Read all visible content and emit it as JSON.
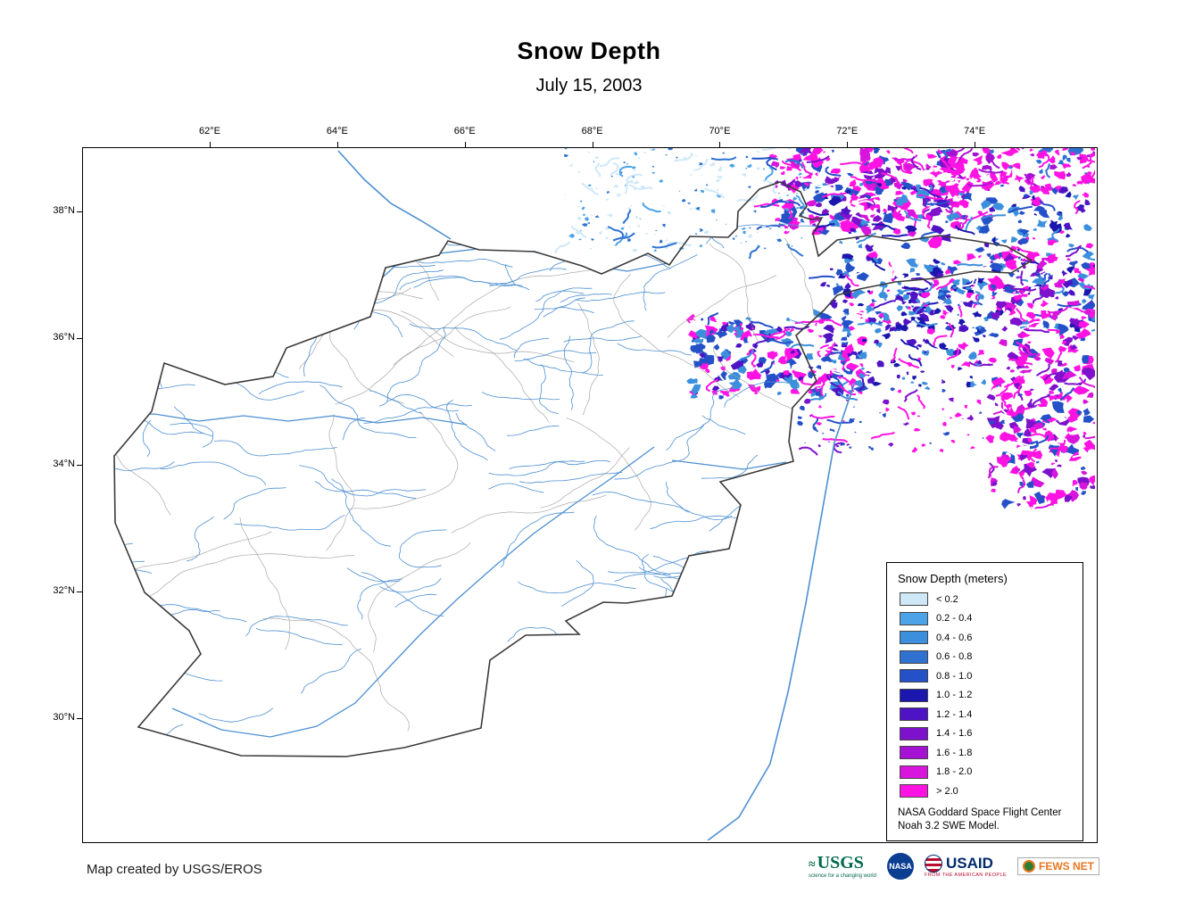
{
  "title": "Snow Depth",
  "subtitle": "July 15, 2003",
  "map": {
    "x_ticks": [
      "62°E",
      "64°E",
      "66°E",
      "68°E",
      "70°E",
      "72°E",
      "74°E"
    ],
    "y_ticks": [
      "38°N",
      "36°N",
      "34°N",
      "32°N",
      "30°N"
    ]
  },
  "legend": {
    "title": "Snow Depth (meters)",
    "entries": [
      {
        "label": "< 0.2",
        "color": "#cfe8f8"
      },
      {
        "label": "0.2 - 0.4",
        "color": "#4da3e8"
      },
      {
        "label": "0.4 - 0.6",
        "color": "#3c8fdd"
      },
      {
        "label": "0.6 - 0.8",
        "color": "#2f72d2"
      },
      {
        "label": "0.8 - 1.0",
        "color": "#2451c8"
      },
      {
        "label": "1.0 - 1.2",
        "color": "#1b17ae"
      },
      {
        "label": "1.2 - 1.4",
        "color": "#4d13c4"
      },
      {
        "label": "1.4 - 1.6",
        "color": "#7d11cc"
      },
      {
        "label": "1.6 - 1.8",
        "color": "#a512d4"
      },
      {
        "label": "1.8 - 2.0",
        "color": "#d815dc"
      },
      {
        "label": "> 2.0",
        "color": "#ff13e2"
      }
    ],
    "note_line1": "NASA Goddard Space Flight Center",
    "note_line2": "Noah 3.2 SWE Model."
  },
  "footer": {
    "credit": "Map created by USGS/EROS",
    "logos": [
      {
        "label": "USGS",
        "tagline": "science for a changing world"
      },
      {
        "label": "NASA"
      },
      {
        "label": "USAID",
        "tagline": "FROM THE AMERICAN PEOPLE"
      },
      {
        "label": "FEWS ",
        "label2": "NET"
      }
    ]
  },
  "colors": {
    "river": "#4d8fd1",
    "watershed": "#9a9a9a",
    "border": "#3a3a3a"
  }
}
